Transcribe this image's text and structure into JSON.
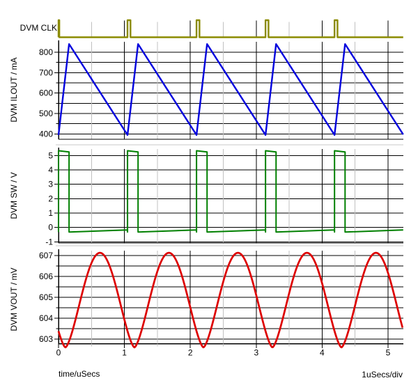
{
  "app": {
    "name": "waveform-analyzer"
  },
  "labels": {
    "clock": "DVM CLK",
    "x_title": "time/uSecs",
    "per_div": "1uSecs/div"
  },
  "colors": {
    "clock_trace": "#8b8b00",
    "ilout_trace": "#0000dd",
    "sw_trace": "#008000",
    "vout_trace": "#dd0000",
    "grid_major": "#000000",
    "grid_minor": "#c0c0c0",
    "panel_separator": "#c8c8c8",
    "axis": "#000000",
    "text": "#000000"
  },
  "xaxis": {
    "title": "time/uSecs",
    "scale_label": "1uSecs/div",
    "units": "uSecs",
    "tick_values": [
      0,
      1,
      2,
      3,
      4,
      5
    ],
    "minor_tick_values": [
      0.5,
      1.5,
      2.5,
      3.5,
      4.5
    ],
    "t_start": 0,
    "t_end": 5.23
  },
  "chart_data": [
    {
      "name": "DVM CLK",
      "type": "line",
      "waveform": "pulse_train",
      "color_key": "clock_trace",
      "low": 0,
      "high": 1,
      "pulse_times": [
        0,
        1.047,
        2.094,
        3.141,
        4.188
      ],
      "pulse_widths": [
        0.012,
        0.045,
        0.045,
        0.045,
        0.045
      ]
    },
    {
      "name": "DVM ILOUT / mA",
      "ylabel": "DVM ILOUT / mA",
      "type": "line",
      "waveform": "sawtooth",
      "color_key": "ilout_trace",
      "period": 1.047,
      "rise_time": 0.16,
      "min": 395,
      "max": 840,
      "ylim": [
        374,
        858
      ],
      "ytick_labels": [
        400,
        500,
        600,
        700,
        800
      ],
      "ytick_minor": [
        450,
        550,
        650,
        750
      ],
      "ygrid": [
        400,
        450,
        500,
        550,
        600,
        650,
        700,
        750,
        800
      ]
    },
    {
      "name": "DVM SW / V",
      "ylabel": "DVM SW / V",
      "type": "line",
      "waveform": "pwm",
      "color_key": "sw_trace",
      "period": 1.047,
      "high_time": 0.16,
      "high_start": 5.33,
      "high_end": 5.25,
      "low_start": -0.32,
      "low_end": -0.17,
      "ylim": [
        -1.08,
        5.55
      ],
      "ytick_labels": [
        5,
        4,
        3,
        2,
        1,
        0,
        -1
      ],
      "ytick_minor": [],
      "ygrid": [
        -1,
        0,
        1,
        2,
        3,
        4,
        5
      ]
    },
    {
      "name": "DVM VOUT / mV",
      "ylabel": "DVM VOUT / mV",
      "type": "line",
      "waveform": "ripple",
      "color_key": "vout_trace",
      "period": 1.047,
      "t_min_offset": 0.105,
      "min": 602.6,
      "max": 607.13,
      "shape_exponent": 0.75,
      "ylim": [
        602.78,
        607.3
      ],
      "ytick_labels": [
        607,
        606,
        605,
        604,
        603
      ],
      "ytick_minor": [
        603.5,
        604.5,
        605.5,
        606.5
      ],
      "ygrid": [
        603,
        603.5,
        604,
        604.5,
        605,
        605.5,
        606,
        606.5,
        607
      ]
    }
  ]
}
